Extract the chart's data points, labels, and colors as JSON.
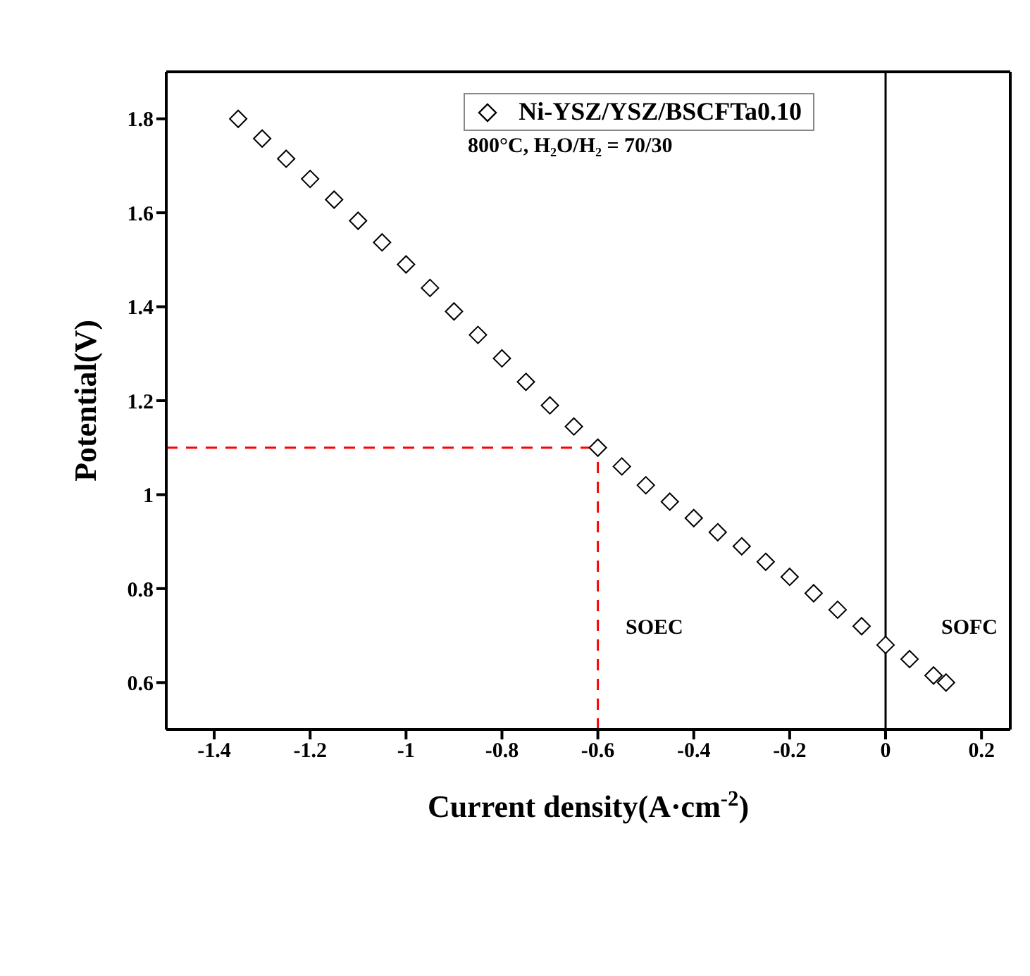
{
  "chart_data": {
    "type": "scatter",
    "subtitle": "800°C, H₂O/H₂ = 70/30",
    "xlabel": "Current density(A·cm$^{-2}$)",
    "ylabel": "Potential(V)",
    "x": [
      -1.35,
      -1.3,
      -1.25,
      -1.2,
      -1.15,
      -1.1,
      -1.05,
      -1.0,
      -0.95,
      -0.9,
      -0.85,
      -0.8,
      -0.75,
      -0.7,
      -0.65,
      -0.6,
      -0.55,
      -0.5,
      -0.45,
      -0.4,
      -0.35,
      -0.3,
      -0.25,
      -0.2,
      -0.15,
      -0.1,
      -0.05,
      0,
      0.05,
      0.1,
      0.126
    ],
    "series": [
      {
        "name": "Ni-YSZ/YSZ/BSCFTa0.10",
        "color": "#000000",
        "values": [
          1.8,
          1.758,
          1.715,
          1.672,
          1.628,
          1.583,
          1.537,
          1.49,
          1.44,
          1.39,
          1.34,
          1.29,
          1.24,
          1.19,
          1.145,
          1.1,
          1.06,
          1.02,
          0.985,
          0.95,
          0.92,
          0.89,
          0.857,
          0.825,
          0.79,
          0.755,
          0.72,
          0.68,
          0.65,
          0.615,
          0.6
        ]
      }
    ],
    "marker": "diamond",
    "legend": "top right",
    "xlim": [
      -1.5,
      0.26
    ],
    "xticks": [
      -1.4,
      -1.2,
      -1,
      -0.8,
      -0.6,
      -0.4,
      -0.2,
      0,
      0.2
    ],
    "ylim": [
      0.5,
      1.9
    ],
    "yticks": [
      0.6,
      0.8,
      1,
      1.2,
      1.4,
      1.6,
      1.8
    ],
    "ref_lines": [
      {
        "axis": "y",
        "value": 1.1,
        "color": "#ff0000",
        "line_style": "dashed"
      },
      {
        "axis": "x",
        "value": -0.6,
        "color": "#ff0000",
        "line_style": "dashed"
      },
      {
        "axis": "x",
        "value": 0,
        "color": "#000000",
        "line_style": "solid"
      }
    ],
    "annotations": [
      "SOEC",
      "SOFC"
    ]
  }
}
